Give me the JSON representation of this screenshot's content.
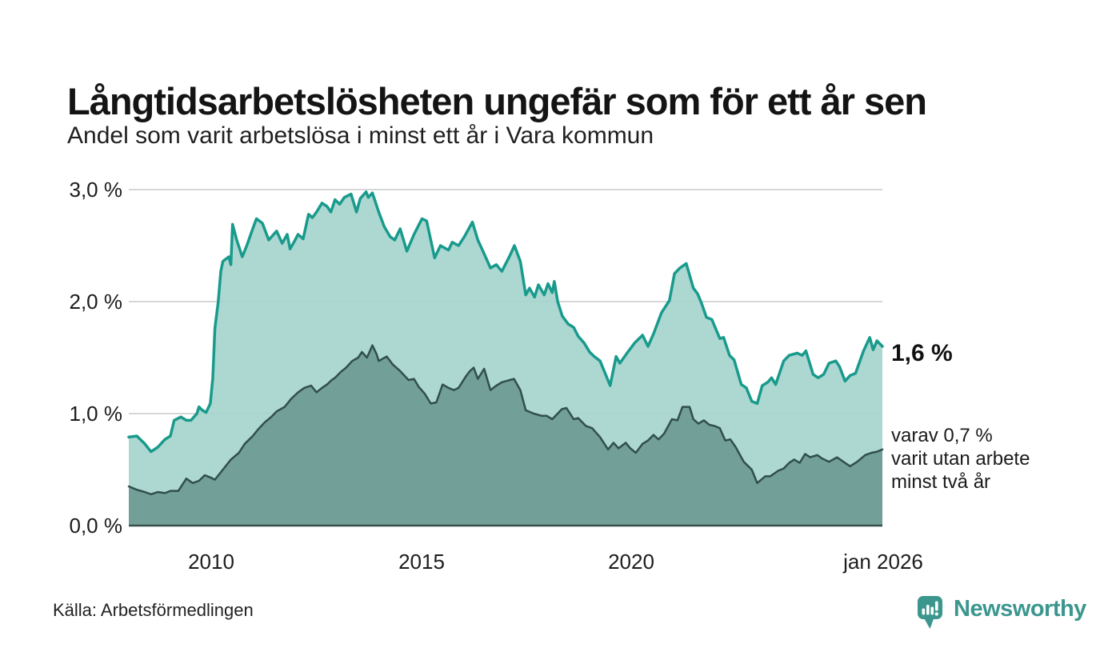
{
  "header": {
    "title": "Långtidsarbetslösheten ungefär som för ett år sen",
    "subtitle": "Andel som varit arbetslösa i minst ett år i Vara kommun"
  },
  "footer": {
    "source": "Källa: Arbetsförmedlingen",
    "brand": "Newsworthy"
  },
  "colors": {
    "accent_teal": "#189a8c",
    "light_fill": "#a7d5ce",
    "dark_line": "#314f4a",
    "dark_fill": "#6f9c95",
    "gridline": "#d6d6d6",
    "axis_line": "#37504b",
    "brand_teal": "#3b968e",
    "text": "#1a1a1a"
  },
  "chart_data": {
    "type": "area",
    "title": "Långtidsarbetslösheten ungefär som för ett år sen",
    "subtitle": "Andel som varit arbetslösa i minst ett år i Vara kommun",
    "xlabel": "",
    "ylabel": "",
    "x_unit": "decimal_year",
    "xlim": [
      2008.06,
      2026.0
    ],
    "ylim": [
      0,
      3.0
    ],
    "grid": "horizontal",
    "legend": "none",
    "yticks": [
      {
        "value": 3.0,
        "label": "3,0 %"
      },
      {
        "value": 2.0,
        "label": "2,0 %"
      },
      {
        "value": 1.0,
        "label": "1,0 %"
      },
      {
        "value": 0.0,
        "label": "0,0 %"
      }
    ],
    "xticks": [
      {
        "value": 2010,
        "label": "2010"
      },
      {
        "value": 2015,
        "label": "2015"
      },
      {
        "value": 2020,
        "label": "2020"
      },
      {
        "value": 2026,
        "label": "jan 2026"
      }
    ],
    "annotations": {
      "latest_total": "1,6 %",
      "secondary_line1": "varav 0,7 %",
      "secondary_line2": "varit utan arbete",
      "secondary_line3": "minst två år"
    },
    "series": [
      {
        "name": "Arbetslösa minst ett år",
        "line_color": "#189a8c",
        "fill_color": "#a7d5ce",
        "line_width": 3.5,
        "latest_value": 1.6,
        "points": [
          [
            2008.06,
            0.79
          ],
          [
            2008.25,
            0.8
          ],
          [
            2008.44,
            0.73
          ],
          [
            2008.59,
            0.66
          ],
          [
            2008.75,
            0.7
          ],
          [
            2008.92,
            0.77
          ],
          [
            2009.05,
            0.8
          ],
          [
            2009.14,
            0.94
          ],
          [
            2009.3,
            0.97
          ],
          [
            2009.43,
            0.94
          ],
          [
            2009.54,
            0.94
          ],
          [
            2009.68,
            1.0
          ],
          [
            2009.73,
            1.06
          ],
          [
            2009.81,
            1.03
          ],
          [
            2009.9,
            1.01
          ],
          [
            2010.0,
            1.09
          ],
          [
            2010.06,
            1.32
          ],
          [
            2010.11,
            1.76
          ],
          [
            2010.19,
            2.0
          ],
          [
            2010.25,
            2.27
          ],
          [
            2010.3,
            2.36
          ],
          [
            2010.44,
            2.4
          ],
          [
            2010.49,
            2.33
          ],
          [
            2010.53,
            2.69
          ],
          [
            2010.63,
            2.55
          ],
          [
            2010.76,
            2.4
          ],
          [
            2010.87,
            2.5
          ],
          [
            2011.01,
            2.65
          ],
          [
            2011.1,
            2.74
          ],
          [
            2011.24,
            2.7
          ],
          [
            2011.39,
            2.55
          ],
          [
            2011.58,
            2.63
          ],
          [
            2011.71,
            2.52
          ],
          [
            2011.83,
            2.6
          ],
          [
            2011.9,
            2.47
          ],
          [
            2012.02,
            2.55
          ],
          [
            2012.09,
            2.6
          ],
          [
            2012.21,
            2.56
          ],
          [
            2012.34,
            2.78
          ],
          [
            2012.43,
            2.75
          ],
          [
            2012.53,
            2.8
          ],
          [
            2012.66,
            2.88
          ],
          [
            2012.78,
            2.85
          ],
          [
            2012.87,
            2.8
          ],
          [
            2012.97,
            2.91
          ],
          [
            2013.08,
            2.87
          ],
          [
            2013.19,
            2.93
          ],
          [
            2013.35,
            2.96
          ],
          [
            2013.48,
            2.8
          ],
          [
            2013.57,
            2.92
          ],
          [
            2013.71,
            2.98
          ],
          [
            2013.76,
            2.93
          ],
          [
            2013.86,
            2.97
          ],
          [
            2014.01,
            2.8
          ],
          [
            2014.14,
            2.67
          ],
          [
            2014.28,
            2.58
          ],
          [
            2014.39,
            2.55
          ],
          [
            2014.52,
            2.65
          ],
          [
            2014.68,
            2.45
          ],
          [
            2014.85,
            2.6
          ],
          [
            2015.04,
            2.74
          ],
          [
            2015.15,
            2.72
          ],
          [
            2015.34,
            2.39
          ],
          [
            2015.48,
            2.5
          ],
          [
            2015.67,
            2.46
          ],
          [
            2015.76,
            2.53
          ],
          [
            2015.91,
            2.5
          ],
          [
            2016.05,
            2.58
          ],
          [
            2016.24,
            2.71
          ],
          [
            2016.37,
            2.55
          ],
          [
            2016.48,
            2.46
          ],
          [
            2016.67,
            2.3
          ],
          [
            2016.81,
            2.33
          ],
          [
            2016.94,
            2.27
          ],
          [
            2017.13,
            2.41
          ],
          [
            2017.24,
            2.5
          ],
          [
            2017.38,
            2.36
          ],
          [
            2017.51,
            2.06
          ],
          [
            2017.6,
            2.12
          ],
          [
            2017.72,
            2.04
          ],
          [
            2017.81,
            2.15
          ],
          [
            2017.95,
            2.06
          ],
          [
            2018.04,
            2.16
          ],
          [
            2018.14,
            2.08
          ],
          [
            2018.19,
            2.18
          ],
          [
            2018.27,
            2.0
          ],
          [
            2018.38,
            1.87
          ],
          [
            2018.52,
            1.8
          ],
          [
            2018.65,
            1.77
          ],
          [
            2018.76,
            1.69
          ],
          [
            2018.9,
            1.63
          ],
          [
            2019.03,
            1.55
          ],
          [
            2019.14,
            1.51
          ],
          [
            2019.28,
            1.47
          ],
          [
            2019.41,
            1.35
          ],
          [
            2019.52,
            1.25
          ],
          [
            2019.66,
            1.51
          ],
          [
            2019.75,
            1.45
          ],
          [
            2019.94,
            1.55
          ],
          [
            2020.1,
            1.63
          ],
          [
            2020.29,
            1.7
          ],
          [
            2020.42,
            1.6
          ],
          [
            2020.55,
            1.71
          ],
          [
            2020.74,
            1.9
          ],
          [
            2020.93,
            2.01
          ],
          [
            2021.05,
            2.25
          ],
          [
            2021.18,
            2.3
          ],
          [
            2021.33,
            2.34
          ],
          [
            2021.5,
            2.12
          ],
          [
            2021.6,
            2.07
          ],
          [
            2021.69,
            1.99
          ],
          [
            2021.81,
            1.86
          ],
          [
            2021.94,
            1.84
          ],
          [
            2022.13,
            1.67
          ],
          [
            2022.22,
            1.68
          ],
          [
            2022.36,
            1.52
          ],
          [
            2022.47,
            1.48
          ],
          [
            2022.64,
            1.26
          ],
          [
            2022.76,
            1.23
          ],
          [
            2022.89,
            1.11
          ],
          [
            2023.02,
            1.09
          ],
          [
            2023.14,
            1.25
          ],
          [
            2023.27,
            1.28
          ],
          [
            2023.36,
            1.32
          ],
          [
            2023.46,
            1.26
          ],
          [
            2023.65,
            1.47
          ],
          [
            2023.78,
            1.52
          ],
          [
            2023.97,
            1.54
          ],
          [
            2024.09,
            1.52
          ],
          [
            2024.18,
            1.56
          ],
          [
            2024.35,
            1.35
          ],
          [
            2024.47,
            1.32
          ],
          [
            2024.6,
            1.35
          ],
          [
            2024.73,
            1.45
          ],
          [
            2024.89,
            1.47
          ],
          [
            2024.98,
            1.42
          ],
          [
            2025.11,
            1.29
          ],
          [
            2025.23,
            1.34
          ],
          [
            2025.36,
            1.36
          ],
          [
            2025.55,
            1.56
          ],
          [
            2025.7,
            1.68
          ],
          [
            2025.78,
            1.57
          ],
          [
            2025.87,
            1.65
          ],
          [
            2026.0,
            1.6
          ]
        ]
      },
      {
        "name": "Arbetslösa minst två år",
        "line_color": "#314f4a",
        "fill_color": "#6f9c95",
        "line_width": 2.5,
        "latest_value": 0.7,
        "points": [
          [
            2008.06,
            0.35
          ],
          [
            2008.25,
            0.32
          ],
          [
            2008.44,
            0.3
          ],
          [
            2008.59,
            0.28
          ],
          [
            2008.75,
            0.3
          ],
          [
            2008.92,
            0.29
          ],
          [
            2009.05,
            0.31
          ],
          [
            2009.24,
            0.31
          ],
          [
            2009.43,
            0.42
          ],
          [
            2009.58,
            0.38
          ],
          [
            2009.73,
            0.4
          ],
          [
            2009.87,
            0.45
          ],
          [
            2010.0,
            0.43
          ],
          [
            2010.11,
            0.41
          ],
          [
            2010.3,
            0.5
          ],
          [
            2010.49,
            0.59
          ],
          [
            2010.68,
            0.65
          ],
          [
            2010.82,
            0.73
          ],
          [
            2011.01,
            0.8
          ],
          [
            2011.14,
            0.86
          ],
          [
            2011.29,
            0.92
          ],
          [
            2011.45,
            0.97
          ],
          [
            2011.58,
            1.02
          ],
          [
            2011.77,
            1.06
          ],
          [
            2011.92,
            1.13
          ],
          [
            2012.09,
            1.19
          ],
          [
            2012.24,
            1.23
          ],
          [
            2012.4,
            1.25
          ],
          [
            2012.53,
            1.19
          ],
          [
            2012.66,
            1.23
          ],
          [
            2012.78,
            1.26
          ],
          [
            2012.89,
            1.3
          ],
          [
            2012.97,
            1.32
          ],
          [
            2013.1,
            1.37
          ],
          [
            2013.23,
            1.41
          ],
          [
            2013.38,
            1.47
          ],
          [
            2013.52,
            1.5
          ],
          [
            2013.61,
            1.55
          ],
          [
            2013.73,
            1.5
          ],
          [
            2013.86,
            1.61
          ],
          [
            2013.96,
            1.53
          ],
          [
            2014.01,
            1.47
          ],
          [
            2014.2,
            1.51
          ],
          [
            2014.34,
            1.44
          ],
          [
            2014.52,
            1.38
          ],
          [
            2014.72,
            1.3
          ],
          [
            2014.85,
            1.31
          ],
          [
            2014.96,
            1.24
          ],
          [
            2015.1,
            1.18
          ],
          [
            2015.25,
            1.09
          ],
          [
            2015.38,
            1.1
          ],
          [
            2015.53,
            1.26
          ],
          [
            2015.67,
            1.23
          ],
          [
            2015.8,
            1.21
          ],
          [
            2015.91,
            1.23
          ],
          [
            2016.08,
            1.33
          ],
          [
            2016.18,
            1.38
          ],
          [
            2016.27,
            1.41
          ],
          [
            2016.37,
            1.31
          ],
          [
            2016.52,
            1.4
          ],
          [
            2016.67,
            1.21
          ],
          [
            2016.81,
            1.25
          ],
          [
            2016.94,
            1.28
          ],
          [
            2017.13,
            1.3
          ],
          [
            2017.23,
            1.31
          ],
          [
            2017.38,
            1.21
          ],
          [
            2017.51,
            1.03
          ],
          [
            2017.7,
            1.0
          ],
          [
            2017.89,
            0.98
          ],
          [
            2018.01,
            0.98
          ],
          [
            2018.14,
            0.95
          ],
          [
            2018.37,
            1.04
          ],
          [
            2018.48,
            1.05
          ],
          [
            2018.65,
            0.95
          ],
          [
            2018.76,
            0.96
          ],
          [
            2018.94,
            0.89
          ],
          [
            2019.09,
            0.87
          ],
          [
            2019.28,
            0.79
          ],
          [
            2019.47,
            0.68
          ],
          [
            2019.6,
            0.74
          ],
          [
            2019.72,
            0.69
          ],
          [
            2019.89,
            0.74
          ],
          [
            2020.0,
            0.69
          ],
          [
            2020.13,
            0.65
          ],
          [
            2020.29,
            0.73
          ],
          [
            2020.42,
            0.76
          ],
          [
            2020.55,
            0.81
          ],
          [
            2020.67,
            0.77
          ],
          [
            2020.8,
            0.82
          ],
          [
            2020.99,
            0.95
          ],
          [
            2021.12,
            0.94
          ],
          [
            2021.24,
            1.06
          ],
          [
            2021.41,
            1.06
          ],
          [
            2021.5,
            0.95
          ],
          [
            2021.62,
            0.91
          ],
          [
            2021.75,
            0.94
          ],
          [
            2021.88,
            0.9
          ],
          [
            2022.0,
            0.89
          ],
          [
            2022.13,
            0.87
          ],
          [
            2022.26,
            0.76
          ],
          [
            2022.38,
            0.77
          ],
          [
            2022.51,
            0.7
          ],
          [
            2022.7,
            0.57
          ],
          [
            2022.89,
            0.5
          ],
          [
            2023.02,
            0.38
          ],
          [
            2023.21,
            0.44
          ],
          [
            2023.33,
            0.44
          ],
          [
            2023.52,
            0.49
          ],
          [
            2023.65,
            0.51
          ],
          [
            2023.78,
            0.56
          ],
          [
            2023.9,
            0.59
          ],
          [
            2024.03,
            0.56
          ],
          [
            2024.16,
            0.64
          ],
          [
            2024.28,
            0.61
          ],
          [
            2024.45,
            0.63
          ],
          [
            2024.56,
            0.6
          ],
          [
            2024.73,
            0.57
          ],
          [
            2024.92,
            0.61
          ],
          [
            2025.07,
            0.57
          ],
          [
            2025.23,
            0.53
          ],
          [
            2025.4,
            0.57
          ],
          [
            2025.59,
            0.63
          ],
          [
            2025.74,
            0.65
          ],
          [
            2025.87,
            0.66
          ],
          [
            2026.0,
            0.68
          ]
        ]
      }
    ]
  }
}
